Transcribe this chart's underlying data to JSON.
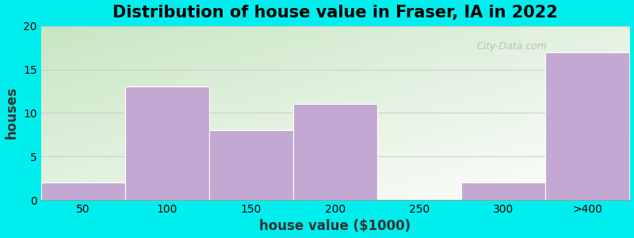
{
  "title": "Distribution of house value in Fraser, IA in 2022",
  "xlabel": "house value ($1000)",
  "ylabel": "houses",
  "categories": [
    "50",
    "100",
    "150",
    "200",
    "250",
    "300",
    ">400"
  ],
  "values": [
    2,
    13,
    8,
    11,
    0,
    2,
    17
  ],
  "bar_color": "#C4A8D4",
  "bar_edgecolor": "#C4A8D4",
  "ylim": [
    0,
    20
  ],
  "yticks": [
    0,
    5,
    10,
    15,
    20
  ],
  "background_outer": "#00EEEE",
  "grad_topleft": [
    200,
    230,
    195
  ],
  "grad_bottomright": [
    255,
    255,
    255
  ],
  "title_fontsize": 15,
  "axis_label_fontsize": 12,
  "tick_fontsize": 10,
  "grid_color": "#CCCCCC",
  "watermark_text": "City-Data.com"
}
